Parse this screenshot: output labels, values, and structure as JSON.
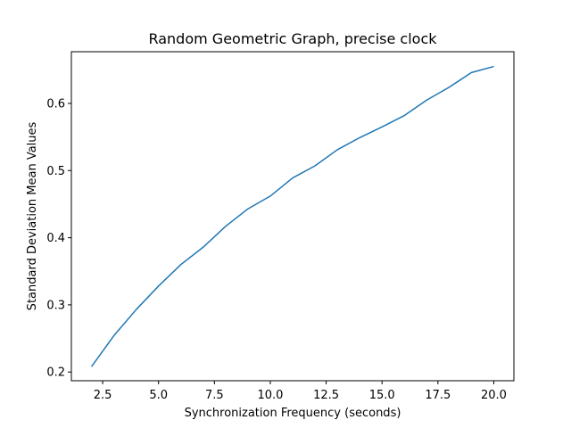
{
  "chart_data": {
    "type": "line",
    "title": "Random Geometric Graph, precise clock",
    "xlabel": "Synchronization Frequency (seconds)",
    "ylabel": "Standard Deviation Mean Values",
    "xlim": [
      1.1,
      20.9
    ],
    "ylim": [
      0.187,
      0.677
    ],
    "grid": false,
    "x_ticks": [
      2.5,
      5.0,
      7.5,
      10.0,
      12.5,
      15.0,
      17.5,
      20.0
    ],
    "x_tick_labels": [
      "2.5",
      "5.0",
      "7.5",
      "10.0",
      "12.5",
      "15.0",
      "17.5",
      "20.0"
    ],
    "y_ticks": [
      0.2,
      0.3,
      0.4,
      0.5,
      0.6
    ],
    "y_tick_labels": [
      "0.2",
      "0.3",
      "0.4",
      "0.5",
      "0.6"
    ],
    "line_color": "#1f77b4",
    "series": [
      {
        "x": [
          2,
          3,
          4,
          5,
          6,
          7,
          8,
          9,
          10,
          11,
          12,
          13,
          14,
          15,
          16,
          17,
          18,
          19,
          20
        ],
        "values": [
          0.208,
          0.254,
          0.293,
          0.328,
          0.36,
          0.386,
          0.417,
          0.443,
          0.462,
          0.489,
          0.507,
          0.531,
          0.549,
          0.565,
          0.582,
          0.605,
          0.624,
          0.646,
          0.655
        ]
      }
    ]
  }
}
